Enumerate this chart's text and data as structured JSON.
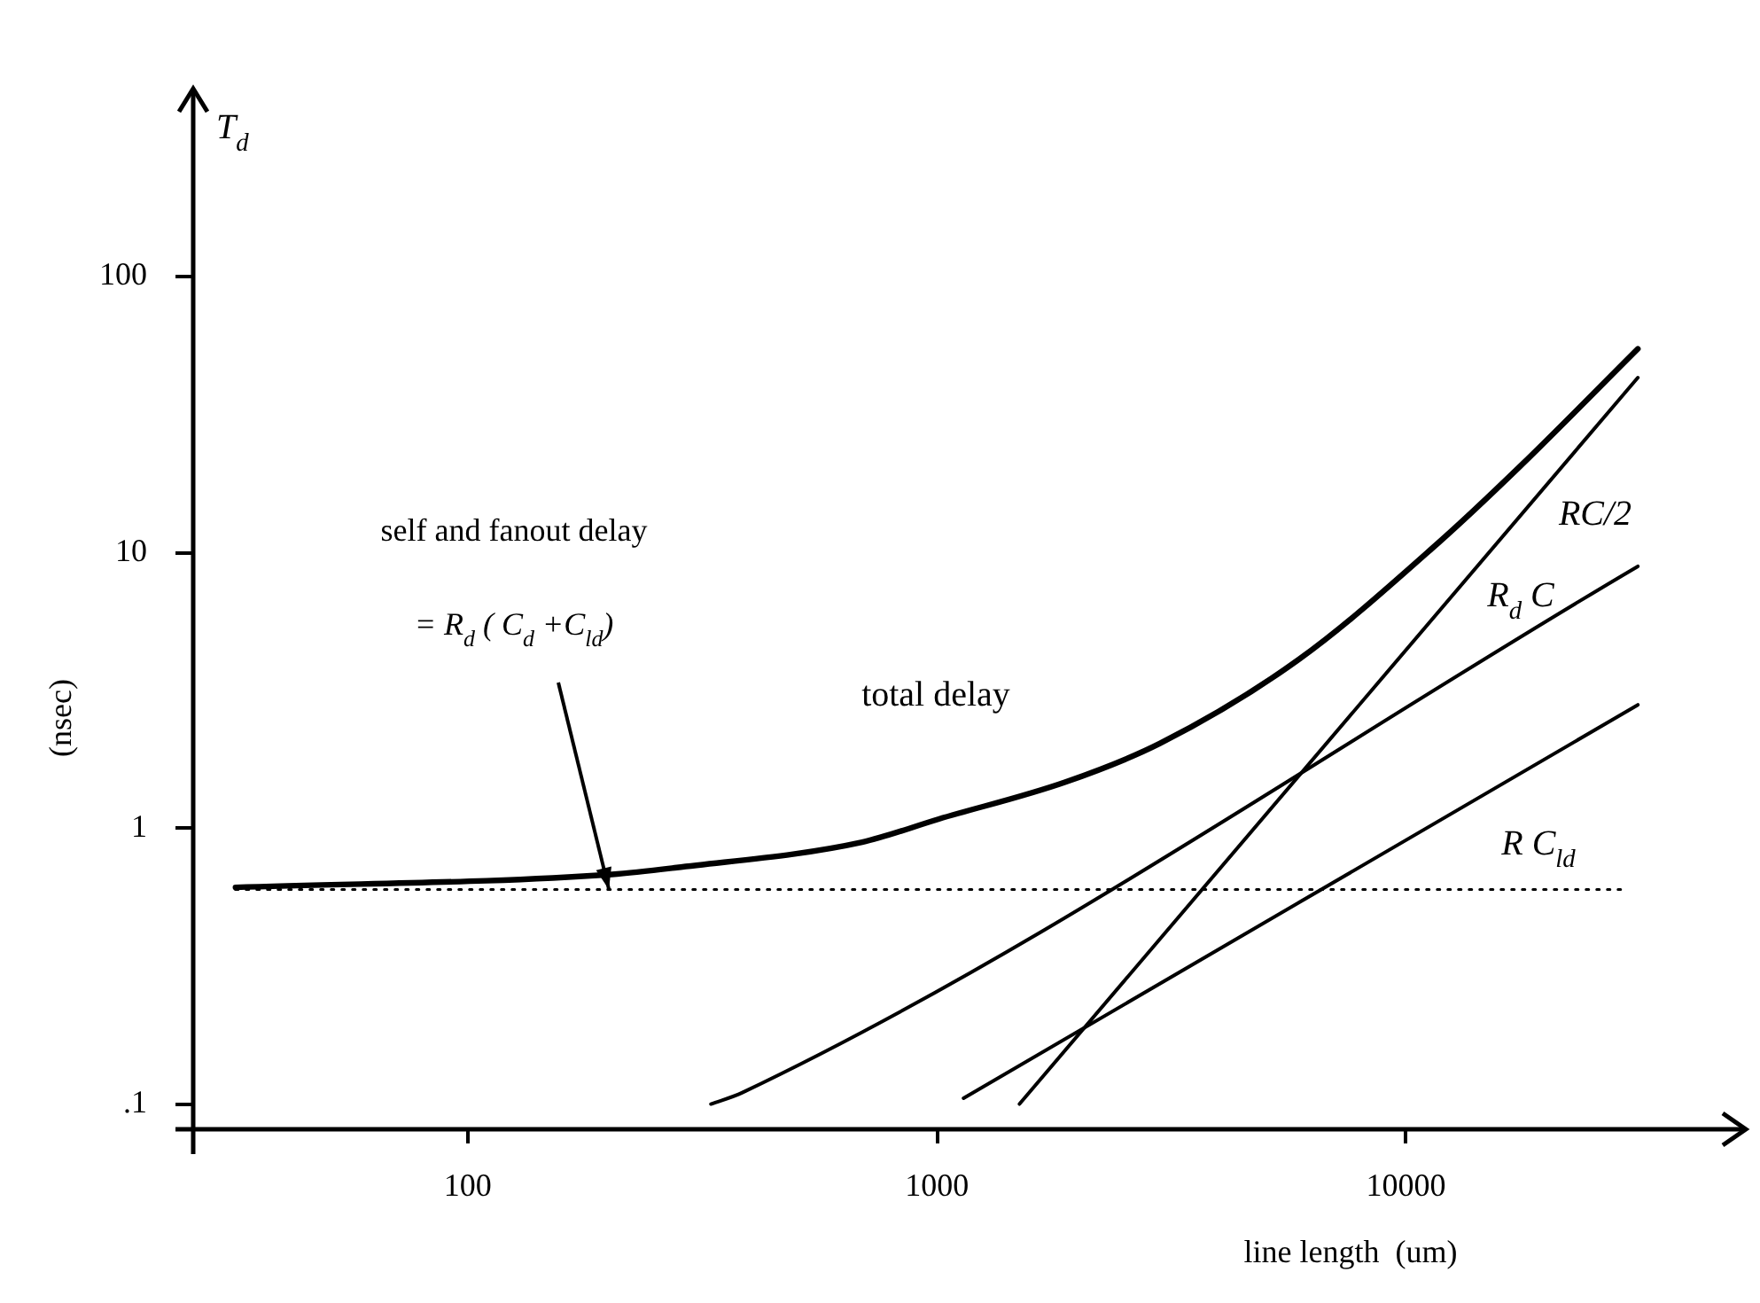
{
  "chart_data": {
    "type": "line",
    "xlabel": "line length  (um)",
    "ylabel": "(nsec)",
    "log": "xy",
    "xlim": [
      26,
      53000
    ],
    "ylim": [
      0.081,
      480
    ],
    "xticks": [
      100,
      1000,
      10000
    ],
    "yticks": [
      {
        "value": 0.1,
        "label": ".1"
      },
      1,
      10,
      100
    ],
    "grid": false,
    "legend": false,
    "marker": "none",
    "annotations": [
      "T$_{d}$",
      "self and fanout delay",
      {
        "text": "= R$_{d}$ ( C$_{d}$ +C$_{ld}$)",
        "x": 200,
        "y": 0.6
      }
    ],
    "series": [
      {
        "name": "total delay",
        "color": "#000000",
        "x": [
          32,
          203,
          279,
          693,
          1010,
          1880,
          2990,
          5920,
          11700,
          17500,
          31200
        ],
        "values": [
          0.61,
          0.68,
          0.72,
          0.89,
          1.08,
          1.47,
          2.03,
          4.1,
          10.8,
          20.5,
          54.7
        ]
      },
      {
        "name": "RC/2",
        "color": "#000000",
        "x": [
          1500,
          31200
        ],
        "values": [
          0.1,
          43
        ]
      },
      {
        "name": "R$_{d}$ C",
        "color": "#000000",
        "x": [
          330,
          385,
          31200
        ],
        "values": [
          0.1,
          0.11,
          8.9
        ]
      },
      {
        "name": "R C$_{ld}$",
        "color": "#000000",
        "x": [
          1140,
          31200
        ],
        "values": [
          0.105,
          2.8
        ]
      },
      {
        "color": "#000000",
        "x": [
          32,
          29500
        ],
        "values": [
          0.6,
          0.6
        ],
        "line_style": "dotted"
      }
    ]
  }
}
